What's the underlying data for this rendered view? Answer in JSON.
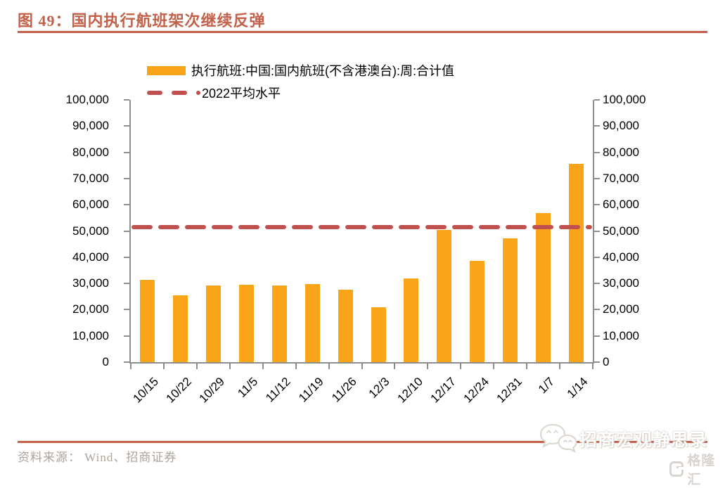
{
  "header": {
    "fig_no": "图 49：",
    "title": "国内执行航班架次继续反弹"
  },
  "colors": {
    "accent": "#C2604A",
    "bar": "#FAA519",
    "avg_line": "#C0504D",
    "axis": "#8E8E8E",
    "source_text": "#ADA49B",
    "watermark_gray": "#D9D4CF"
  },
  "legend": {
    "bar_label": "执行航班:中国:国内航班(不含港澳台):周:合计值",
    "line_label": "2022平均水平"
  },
  "chart_data": {
    "type": "bar",
    "title": "国内执行航班架次继续反弹",
    "categories": [
      "10/15",
      "10/22",
      "10/29",
      "11/5",
      "11/12",
      "11/19",
      "11/26",
      "12/3",
      "12/10",
      "12/17",
      "12/24",
      "12/31",
      "1/7",
      "1/14"
    ],
    "series": [
      {
        "name": "执行航班:中国:国内航班(不含港澳台):周:合计值",
        "values": [
          31400,
          25500,
          29200,
          29600,
          29200,
          29800,
          27700,
          20900,
          32000,
          50400,
          38600,
          47200,
          56800,
          75600
        ]
      }
    ],
    "reference_line": {
      "name": "2022平均水平",
      "value": 51500
    },
    "ylim": [
      0,
      100000
    ],
    "ytick_step": 10000,
    "yticks": [
      0,
      10000,
      20000,
      30000,
      40000,
      50000,
      60000,
      70000,
      80000,
      90000,
      100000
    ],
    "y_axis_sides": [
      "left",
      "right"
    ],
    "xtick_rotation": 45,
    "grid": false,
    "legend_position": "top-left"
  },
  "footer": {
    "source": "资料来源： Wind、招商证券",
    "watermark_text": "招商宏观静思录",
    "brand_text": "格隆汇"
  }
}
